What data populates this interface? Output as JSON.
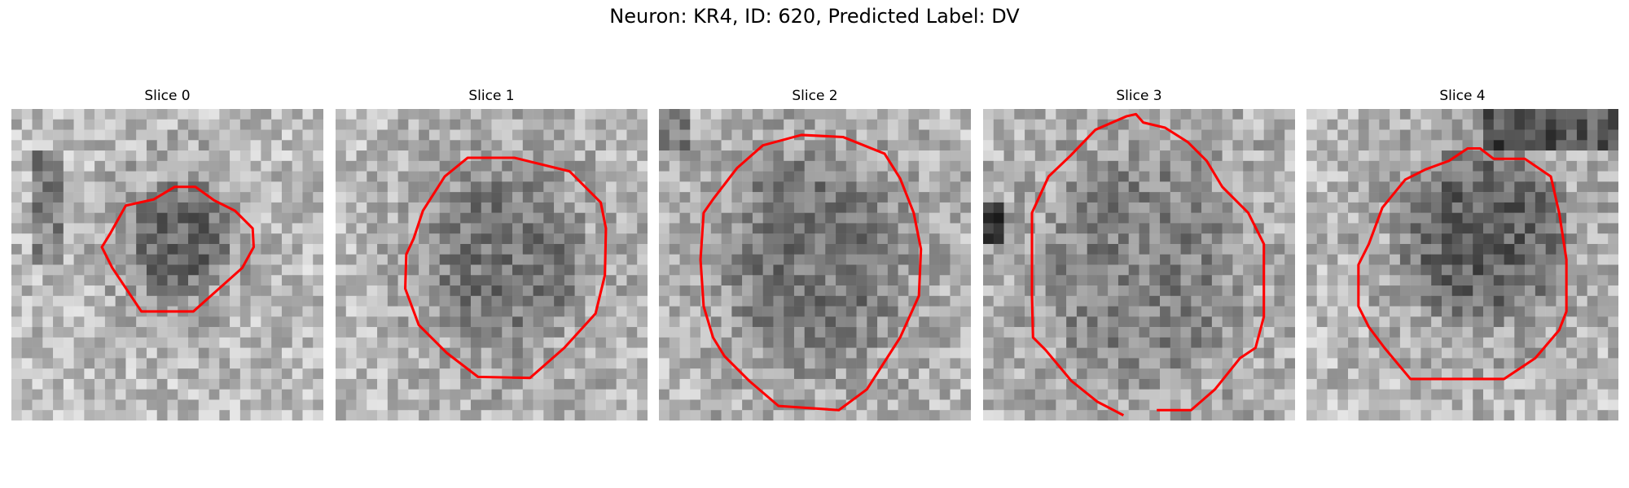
{
  "figure": {
    "title": "Neuron: KR4, ID: 620, Predicted Label: DV",
    "outline_color": "#ff0000",
    "colormap": "gray",
    "panels": [
      {
        "label": "Slice 0"
      },
      {
        "label": "Slice 1"
      },
      {
        "label": "Slice 2"
      },
      {
        "label": "Slice 3"
      },
      {
        "label": "Slice 4"
      }
    ]
  }
}
